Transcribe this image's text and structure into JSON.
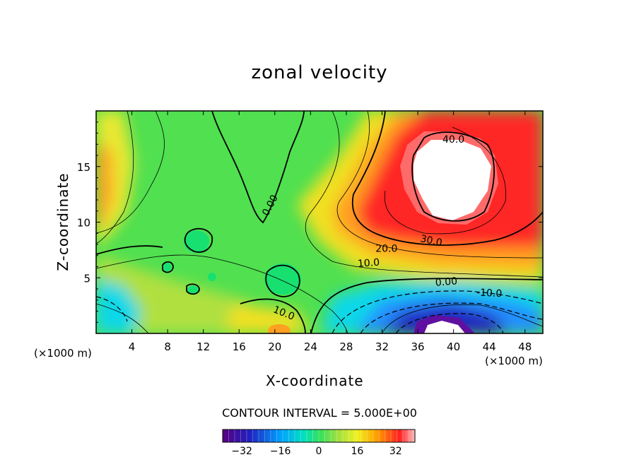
{
  "chart_data": {
    "type": "heatmap",
    "title": "zonal velocity",
    "xlabel": "X-coordinate",
    "ylabel": "Z-coordinate",
    "x_unit_label": "(×1000 m)",
    "y_unit_label": "(×1000 m)",
    "xlim": [
      0,
      50
    ],
    "ylim": [
      0,
      20
    ],
    "x_ticks": [
      4,
      8,
      12,
      16,
      20,
      24,
      28,
      32,
      36,
      40,
      44,
      48
    ],
    "y_ticks": [
      5,
      10,
      15
    ],
    "contour_interval_text": "CONTOUR INTERVAL = 5.000E+00",
    "contour_labels": [
      {
        "text": "0.00",
        "x": 19.5,
        "z": 11.5
      },
      {
        "text": "40.0",
        "x": 40.0,
        "z": 17.4
      },
      {
        "text": "30.0",
        "x": 37.5,
        "z": 8.3
      },
      {
        "text": "20.0",
        "x": 32.5,
        "z": 7.6
      },
      {
        "text": "10.0",
        "x": 30.5,
        "z": 6.3
      },
      {
        "text": "0.00",
        "x": 39.2,
        "z": 4.6
      },
      {
        "text": "-10.0",
        "x": 44.0,
        "z": 3.6
      },
      {
        "text": "10.0",
        "x": 21.0,
        "z": 1.8
      }
    ],
    "colorbar": {
      "ticks": [
        -32,
        -16,
        0,
        16,
        32
      ],
      "range": [
        -40,
        40
      ]
    },
    "colormap": [
      "#5a0080",
      "#2020c0",
      "#00a0ff",
      "#00e0c0",
      "#30e060",
      "#a0e040",
      "#f0f020",
      "#ffa000",
      "#ff2020",
      "#ffffff"
    ]
  }
}
